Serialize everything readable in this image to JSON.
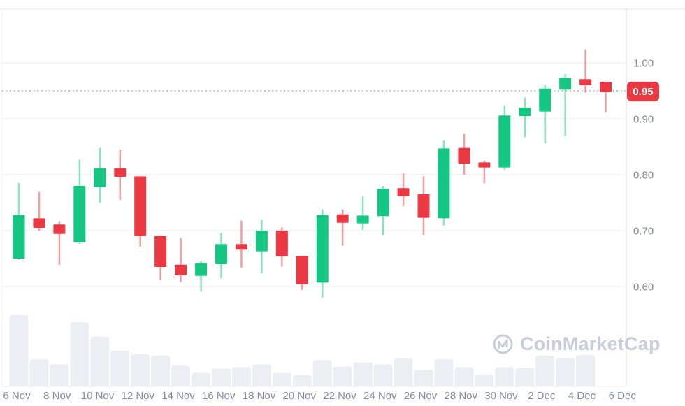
{
  "watermark": {
    "brand": "CoinMarketCap"
  },
  "colors": {
    "up": "#16c784",
    "down": "#ea3943",
    "badge_bg": "#ea3943",
    "badge_text": "#ffffff",
    "axis_text": "#808a9d",
    "grid": "#f0f1f5",
    "axis_line": "#e7e9ee",
    "volume_bar": "#ebeef3",
    "watermark_color": "#c7cdda",
    "dotted_line": "#a6adba",
    "background": "#ffffff"
  },
  "chart_data": {
    "type": "candlestick",
    "title": "",
    "xlabel": "",
    "ylabel": "",
    "grid": "horizontal",
    "legend": "none",
    "ylim": [
      0.56,
      1.06
    ],
    "x_axis_labels": [
      "6 Nov",
      "8 Nov",
      "10 Nov",
      "12 Nov",
      "14 Nov",
      "16 Nov",
      "18 Nov",
      "20 Nov",
      "22 Nov",
      "24 Nov",
      "26 Nov",
      "28 Nov",
      "30 Nov",
      "2 Dec",
      "4 Dec",
      "6 Dec"
    ],
    "y_axis_ticks": [
      {
        "label": "1.00",
        "value": 1.0
      },
      {
        "label": "0.90",
        "value": 0.9
      },
      {
        "label": "0.80",
        "value": 0.8
      },
      {
        "label": "0.70",
        "value": 0.7
      },
      {
        "label": "0.60",
        "value": 0.6
      }
    ],
    "current_price_label": "0.95",
    "current_price_value": 0.95,
    "current_price_line_style": "dotted",
    "candles": [
      {
        "date": "6 Nov",
        "open": 0.65,
        "high": 0.785,
        "low": 0.648,
        "close": 0.728
      },
      {
        "date": "7 Nov",
        "open": 0.722,
        "high": 0.769,
        "low": 0.7,
        "close": 0.705
      },
      {
        "date": "8 Nov",
        "open": 0.711,
        "high": 0.717,
        "low": 0.639,
        "close": 0.694
      },
      {
        "date": "9 Nov",
        "open": 0.679,
        "high": 0.827,
        "low": 0.676,
        "close": 0.78
      },
      {
        "date": "10 Nov",
        "open": 0.778,
        "high": 0.848,
        "low": 0.75,
        "close": 0.812
      },
      {
        "date": "11 Nov",
        "open": 0.812,
        "high": 0.845,
        "low": 0.755,
        "close": 0.796
      },
      {
        "date": "12 Nov",
        "open": 0.797,
        "high": 0.797,
        "low": 0.671,
        "close": 0.69
      },
      {
        "date": "13 Nov",
        "open": 0.69,
        "high": 0.69,
        "low": 0.612,
        "close": 0.635
      },
      {
        "date": "14 Nov",
        "open": 0.639,
        "high": 0.687,
        "low": 0.608,
        "close": 0.62
      },
      {
        "date": "15 Nov",
        "open": 0.619,
        "high": 0.646,
        "low": 0.591,
        "close": 0.642
      },
      {
        "date": "16 Nov",
        "open": 0.64,
        "high": 0.696,
        "low": 0.615,
        "close": 0.676
      },
      {
        "date": "17 Nov",
        "open": 0.676,
        "high": 0.718,
        "low": 0.634,
        "close": 0.666
      },
      {
        "date": "18 Nov",
        "open": 0.663,
        "high": 0.719,
        "low": 0.624,
        "close": 0.7
      },
      {
        "date": "19 Nov",
        "open": 0.7,
        "high": 0.706,
        "low": 0.636,
        "close": 0.654
      },
      {
        "date": "20 Nov",
        "open": 0.655,
        "high": 0.655,
        "low": 0.594,
        "close": 0.604
      },
      {
        "date": "21 Nov",
        "open": 0.607,
        "high": 0.738,
        "low": 0.58,
        "close": 0.728
      },
      {
        "date": "22 Nov",
        "open": 0.729,
        "high": 0.738,
        "low": 0.673,
        "close": 0.714
      },
      {
        "date": "23 Nov",
        "open": 0.713,
        "high": 0.762,
        "low": 0.701,
        "close": 0.727
      },
      {
        "date": "24 Nov",
        "open": 0.726,
        "high": 0.78,
        "low": 0.692,
        "close": 0.775
      },
      {
        "date": "25 Nov",
        "open": 0.776,
        "high": 0.802,
        "low": 0.744,
        "close": 0.762
      },
      {
        "date": "26 Nov",
        "open": 0.765,
        "high": 0.797,
        "low": 0.692,
        "close": 0.723
      },
      {
        "date": "27 Nov",
        "open": 0.722,
        "high": 0.861,
        "low": 0.709,
        "close": 0.847
      },
      {
        "date": "28 Nov",
        "open": 0.848,
        "high": 0.873,
        "low": 0.8,
        "close": 0.82
      },
      {
        "date": "29 Nov",
        "open": 0.822,
        "high": 0.825,
        "low": 0.785,
        "close": 0.813
      },
      {
        "date": "30 Nov",
        "open": 0.813,
        "high": 0.924,
        "low": 0.809,
        "close": 0.906
      },
      {
        "date": "1 Dec",
        "open": 0.905,
        "high": 0.938,
        "low": 0.867,
        "close": 0.92
      },
      {
        "date": "2 Dec",
        "open": 0.913,
        "high": 0.96,
        "low": 0.856,
        "close": 0.954
      },
      {
        "date": "3 Dec",
        "open": 0.952,
        "high": 0.98,
        "low": 0.869,
        "close": 0.973
      },
      {
        "date": "4 Dec",
        "open": 0.971,
        "high": 1.024,
        "low": 0.947,
        "close": 0.96
      },
      {
        "date": "5 Dec",
        "open": 0.966,
        "high": 0.966,
        "low": 0.912,
        "close": 0.948
      }
    ],
    "volumes_relative": [
      1.0,
      0.38,
      0.31,
      0.9,
      0.7,
      0.5,
      0.45,
      0.43,
      0.29,
      0.19,
      0.25,
      0.27,
      0.31,
      0.19,
      0.16,
      0.37,
      0.28,
      0.34,
      0.31,
      0.4,
      0.23,
      0.38,
      0.27,
      0.17,
      0.27,
      0.26,
      0.43,
      0.4,
      0.44,
      0.0
    ]
  }
}
